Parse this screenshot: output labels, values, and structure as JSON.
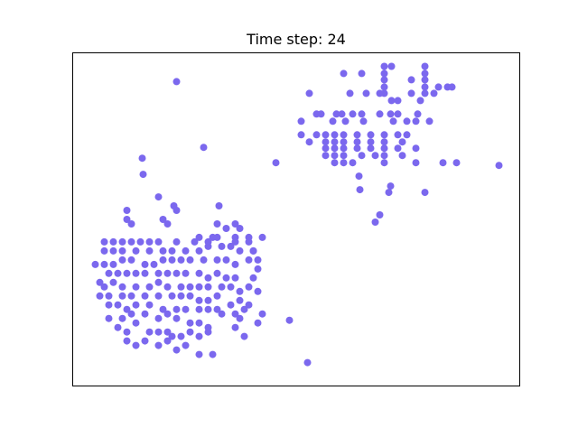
{
  "chart_data": {
    "type": "scatter",
    "title": "Time step: 24",
    "xlabel": "",
    "ylabel": "",
    "xlim": [
      0,
      495
    ],
    "ylim": [
      0,
      370
    ],
    "axes_ticks": "none",
    "grid": false,
    "series": [
      {
        "color": "#7b68ee",
        "points": [
          [
            115,
            338
          ],
          [
            345,
            355
          ],
          [
            345,
            347
          ],
          [
            345,
            340
          ],
          [
            345,
            332
          ],
          [
            345,
            325
          ],
          [
            390,
            355
          ],
          [
            390,
            347
          ],
          [
            390,
            340
          ],
          [
            390,
            332
          ],
          [
            390,
            325
          ],
          [
            353,
            355
          ],
          [
            375,
            340
          ],
          [
            405,
            332
          ],
          [
            415,
            332
          ],
          [
            420,
            332
          ],
          [
            300,
            347
          ],
          [
            320,
            347
          ],
          [
            375,
            325
          ],
          [
            385,
            317
          ],
          [
            400,
            325
          ],
          [
            262,
            325
          ],
          [
            307,
            325
          ],
          [
            325,
            325
          ],
          [
            340,
            325
          ],
          [
            353,
            317
          ],
          [
            360,
            317
          ],
          [
            270,
            302
          ],
          [
            275,
            302
          ],
          [
            292,
            302
          ],
          [
            298,
            302
          ],
          [
            310,
            302
          ],
          [
            320,
            302
          ],
          [
            340,
            302
          ],
          [
            352,
            302
          ],
          [
            360,
            302
          ],
          [
            395,
            294
          ],
          [
            380,
            294
          ],
          [
            253,
            294
          ],
          [
            288,
            294
          ],
          [
            302,
            294
          ],
          [
            322,
            294
          ],
          [
            355,
            294
          ],
          [
            370,
            294
          ],
          [
            382,
            302
          ],
          [
            253,
            279
          ],
          [
            270,
            279
          ],
          [
            280,
            279
          ],
          [
            290,
            279
          ],
          [
            300,
            279
          ],
          [
            315,
            279
          ],
          [
            330,
            279
          ],
          [
            345,
            279
          ],
          [
            360,
            279
          ],
          [
            370,
            279
          ],
          [
            262,
            271
          ],
          [
            280,
            271
          ],
          [
            290,
            271
          ],
          [
            300,
            271
          ],
          [
            315,
            271
          ],
          [
            330,
            271
          ],
          [
            345,
            271
          ],
          [
            365,
            271
          ],
          [
            280,
            264
          ],
          [
            290,
            264
          ],
          [
            300,
            264
          ],
          [
            315,
            264
          ],
          [
            330,
            264
          ],
          [
            345,
            264
          ],
          [
            360,
            264
          ],
          [
            380,
            264
          ],
          [
            280,
            256
          ],
          [
            290,
            256
          ],
          [
            300,
            256
          ],
          [
            320,
            256
          ],
          [
            335,
            256
          ],
          [
            345,
            256
          ],
          [
            365,
            256
          ],
          [
            290,
            248
          ],
          [
            300,
            248
          ],
          [
            310,
            248
          ],
          [
            345,
            248
          ],
          [
            380,
            248
          ],
          [
            410,
            248
          ],
          [
            425,
            248
          ],
          [
            472,
            245
          ],
          [
            225,
            248
          ],
          [
            317,
            233
          ],
          [
            318,
            218
          ],
          [
            352,
            222
          ],
          [
            350,
            215
          ],
          [
            390,
            215
          ],
          [
            335,
            182
          ],
          [
            77,
            253
          ],
          [
            60,
            195
          ],
          [
            60,
            185
          ],
          [
            65,
            180
          ],
          [
            115,
            195
          ],
          [
            100,
            185
          ],
          [
            105,
            180
          ],
          [
            140,
            165
          ],
          [
            155,
            165
          ],
          [
            160,
            180
          ],
          [
            162,
            200
          ],
          [
            180,
            165
          ],
          [
            195,
            165
          ],
          [
            185,
            175
          ],
          [
            170,
            175
          ],
          [
            35,
            160
          ],
          [
            45,
            160
          ],
          [
            55,
            160
          ],
          [
            65,
            160
          ],
          [
            75,
            160
          ],
          [
            85,
            160
          ],
          [
            95,
            160
          ],
          [
            115,
            160
          ],
          [
            135,
            160
          ],
          [
            150,
            160
          ],
          [
            160,
            165
          ],
          [
            180,
            160
          ],
          [
            195,
            160
          ],
          [
            200,
            150
          ],
          [
            210,
            165
          ],
          [
            35,
            150
          ],
          [
            45,
            150
          ],
          [
            55,
            150
          ],
          [
            70,
            150
          ],
          [
            85,
            150
          ],
          [
            100,
            150
          ],
          [
            110,
            150
          ],
          [
            125,
            150
          ],
          [
            140,
            150
          ],
          [
            150,
            155
          ],
          [
            165,
            155
          ],
          [
            175,
            155
          ],
          [
            185,
            150
          ],
          [
            200,
            150
          ],
          [
            205,
            140
          ],
          [
            25,
            135
          ],
          [
            35,
            135
          ],
          [
            45,
            135
          ],
          [
            55,
            140
          ],
          [
            65,
            140
          ],
          [
            80,
            135
          ],
          [
            90,
            135
          ],
          [
            100,
            140
          ],
          [
            110,
            140
          ],
          [
            120,
            140
          ],
          [
            130,
            140
          ],
          [
            145,
            140
          ],
          [
            160,
            140
          ],
          [
            170,
            140
          ],
          [
            180,
            135
          ],
          [
            195,
            140
          ],
          [
            205,
            130
          ],
          [
            40,
            125
          ],
          [
            50,
            125
          ],
          [
            60,
            125
          ],
          [
            70,
            125
          ],
          [
            80,
            125
          ],
          [
            95,
            125
          ],
          [
            105,
            125
          ],
          [
            115,
            125
          ],
          [
            125,
            125
          ],
          [
            140,
            125
          ],
          [
            150,
            120
          ],
          [
            160,
            125
          ],
          [
            170,
            120
          ],
          [
            180,
            120
          ],
          [
            200,
            120
          ],
          [
            205,
            105
          ],
          [
            30,
            115
          ],
          [
            35,
            110
          ],
          [
            45,
            115
          ],
          [
            55,
            110
          ],
          [
            70,
            110
          ],
          [
            85,
            110
          ],
          [
            95,
            115
          ],
          [
            105,
            110
          ],
          [
            120,
            110
          ],
          [
            130,
            110
          ],
          [
            140,
            110
          ],
          [
            150,
            110
          ],
          [
            165,
            110
          ],
          [
            175,
            110
          ],
          [
            185,
            105
          ],
          [
            195,
            110
          ],
          [
            30,
            100
          ],
          [
            40,
            100
          ],
          [
            55,
            100
          ],
          [
            65,
            100
          ],
          [
            80,
            100
          ],
          [
            95,
            100
          ],
          [
            110,
            100
          ],
          [
            120,
            100
          ],
          [
            130,
            100
          ],
          [
            140,
            95
          ],
          [
            150,
            95
          ],
          [
            160,
            100
          ],
          [
            175,
            90
          ],
          [
            185,
            95
          ],
          [
            195,
            90
          ],
          [
            210,
            80
          ],
          [
            40,
            90
          ],
          [
            50,
            90
          ],
          [
            60,
            85
          ],
          [
            70,
            90
          ],
          [
            85,
            90
          ],
          [
            100,
            85
          ],
          [
            115,
            85
          ],
          [
            125,
            85
          ],
          [
            140,
            85
          ],
          [
            150,
            85
          ],
          [
            160,
            85
          ],
          [
            180,
            80
          ],
          [
            190,
            85
          ],
          [
            205,
            70
          ],
          [
            40,
            75
          ],
          [
            55,
            75
          ],
          [
            65,
            80
          ],
          [
            80,
            80
          ],
          [
            95,
            75
          ],
          [
            105,
            80
          ],
          [
            115,
            75
          ],
          [
            130,
            70
          ],
          [
            140,
            70
          ],
          [
            150,
            65
          ],
          [
            165,
            80
          ],
          [
            185,
            75
          ],
          [
            190,
            55
          ],
          [
            50,
            65
          ],
          [
            60,
            60
          ],
          [
            70,
            70
          ],
          [
            85,
            60
          ],
          [
            95,
            60
          ],
          [
            105,
            60
          ],
          [
            110,
            55
          ],
          [
            120,
            55
          ],
          [
            130,
            60
          ],
          [
            140,
            55
          ],
          [
            150,
            60
          ],
          [
            180,
            65
          ],
          [
            60,
            50
          ],
          [
            70,
            45
          ],
          [
            80,
            50
          ],
          [
            95,
            45
          ],
          [
            105,
            50
          ],
          [
            115,
            40
          ],
          [
            125,
            45
          ],
          [
            140,
            35
          ],
          [
            155,
            35
          ],
          [
            78,
            235
          ],
          [
            95,
            210
          ],
          [
            112,
            200
          ],
          [
            145,
            265
          ],
          [
            240,
            73
          ],
          [
            260,
            26
          ],
          [
            340,
            190
          ],
          [
            180,
            180
          ]
        ]
      }
    ]
  }
}
